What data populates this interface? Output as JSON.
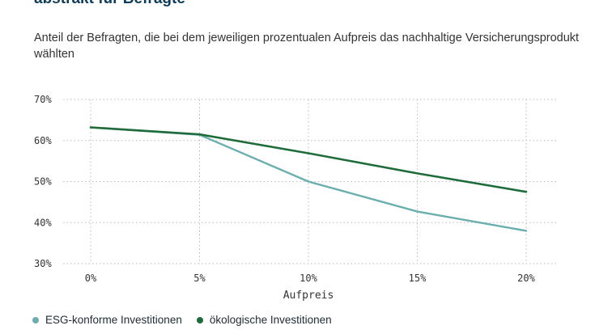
{
  "header": {
    "title": "abstrakt für Befragte",
    "subtitle": "Anteil der Befragten, die bei dem jeweiligen prozentualen Aufpreis das nachhaltige Versicherungsprodukt wählten"
  },
  "colors": {
    "esg": "#6aaeae",
    "oeko": "#1f6b3a",
    "grid": "#bbbbbb"
  },
  "chart_data": {
    "type": "line",
    "x": [
      "0%",
      "5%",
      "10%",
      "15%",
      "20%"
    ],
    "xlabel": "Aufpreis",
    "ylabel": "",
    "ylim": [
      30,
      70
    ],
    "yticks": [
      "30%",
      "40%",
      "50%",
      "60%",
      "70%"
    ],
    "grid": true,
    "legend_position": "bottom-left",
    "series": [
      {
        "name": "ESG-konforme Investitionen",
        "values": [
          63.2,
          61.4,
          50.0,
          42.7,
          38.0
        ]
      },
      {
        "name": "ökologische Investitionen",
        "values": [
          63.2,
          61.5,
          56.9,
          52.0,
          47.5
        ]
      }
    ]
  }
}
